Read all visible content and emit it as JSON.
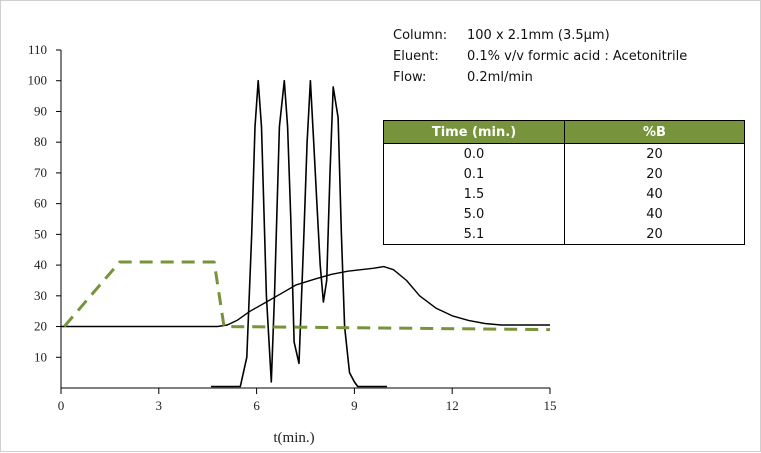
{
  "conditions": [
    {
      "label": "Column:",
      "value": "100 x 2.1mm (3.5µm)"
    },
    {
      "label": "Eluent:",
      "value": "0.1% v/v formic acid : Acetonitrile"
    },
    {
      "label": "Flow:",
      "value": "0.2ml/min"
    }
  ],
  "table": {
    "header": {
      "time": "Time (min.)",
      "b": "%B"
    },
    "rows": [
      {
        "time": "0.0",
        "b": "20"
      },
      {
        "time": "0.1",
        "b": "20"
      },
      {
        "time": "1.5",
        "b": "40"
      },
      {
        "time": "5.0",
        "b": "40"
      },
      {
        "time": "5.1",
        "b": "20"
      }
    ]
  },
  "chart_data": {
    "type": "line",
    "xlabel": "t(min.)",
    "ylabel": "",
    "xlim": [
      0,
      15
    ],
    "ylim": [
      0,
      110
    ],
    "xticks": [
      0,
      3,
      6,
      9,
      12,
      15
    ],
    "yticks": [
      10,
      20,
      30,
      40,
      50,
      60,
      70,
      80,
      90,
      100,
      110
    ],
    "grid": false,
    "colors": {
      "chromatogram": "#000000",
      "gradient_program": "#77933c",
      "profile": "#000000"
    },
    "series": [
      {
        "style": "solid",
        "x": [
          0,
          4.8,
          5.1,
          5.4,
          5.8,
          6.3,
          6.8,
          7.2,
          7.8,
          8.3,
          8.8,
          9.2,
          9.6,
          9.9,
          10.2,
          10.6,
          11.0,
          11.5,
          12.0,
          12.5,
          13.0,
          13.5,
          14.0,
          15.0
        ],
        "y": [
          20,
          20,
          20.5,
          22,
          25,
          28,
          31,
          33.5,
          35.5,
          37,
          38,
          38.5,
          39,
          39.5,
          38.5,
          35,
          30,
          26,
          23.5,
          22,
          21,
          20.5,
          20.5,
          20.5
        ]
      },
      {
        "style": "peaks",
        "x": [
          4.6,
          5.5,
          5.7,
          5.85,
          5.95,
          6.05,
          6.15,
          6.3,
          6.45,
          6.55,
          6.7,
          6.85,
          6.95,
          7.05,
          7.15,
          7.3,
          7.45,
          7.55,
          7.65,
          7.75,
          7.85,
          7.95,
          8.05,
          8.15,
          8.25,
          8.35,
          8.5,
          8.6,
          8.7,
          8.85,
          9.0,
          9.1,
          9.3,
          9.6,
          10.0
        ],
        "y": [
          0.5,
          0.5,
          10,
          50,
          85,
          100,
          85,
          30,
          2,
          30,
          85,
          100,
          85,
          55,
          15,
          8,
          50,
          80,
          100,
          80,
          60,
          40,
          28,
          35,
          70,
          98,
          88,
          50,
          20,
          5,
          2,
          0.5,
          0.5,
          0.5,
          0.5
        ]
      },
      {
        "style": "dashed",
        "x": [
          0.1,
          1.8,
          4.7,
          5.0,
          15.0
        ],
        "y": [
          20,
          41,
          41,
          20,
          19
        ]
      }
    ]
  }
}
